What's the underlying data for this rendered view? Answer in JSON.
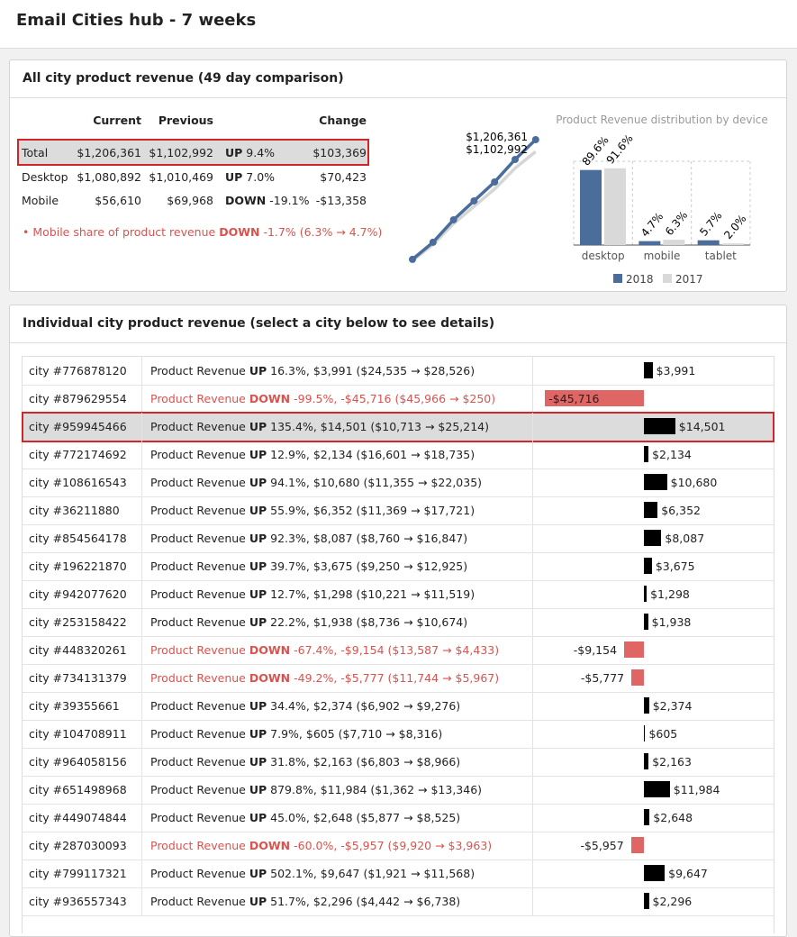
{
  "header": {
    "title": "Email Cities hub - 7 weeks"
  },
  "summary": {
    "title": "All city product revenue (49 day comparison)",
    "columns": [
      "Current",
      "Previous",
      "Change"
    ],
    "rows": [
      {
        "label": "Total",
        "current": "$1,206,361",
        "previous": "$1,102,992",
        "direction": "UP",
        "percent": "9.4%",
        "change": "$103,369"
      },
      {
        "label": "Desktop",
        "current": "$1,080,892",
        "previous": "$1,010,469",
        "direction": "UP",
        "percent": "7.0%",
        "change": "$70,423"
      },
      {
        "label": "Mobile",
        "current": "$56,610",
        "previous": "$69,968",
        "direction": "DOWN",
        "percent": "-19.1%",
        "change": "-$13,358"
      }
    ],
    "selected_row": 0,
    "note": {
      "text": "Mobile share of product revenue",
      "direction": "DOWN",
      "detail": "-1.7% (6.3% → 4.7%)"
    }
  },
  "sparkline": {
    "labels": [
      "$1,206,361",
      "$1,102,992"
    ],
    "current": {
      "color": "#4a6d9b",
      "values": [
        172000,
        319700,
        514100,
        677400,
        840700,
        1035100,
        1206361
      ]
    },
    "previous": {
      "color": "#d6d6d6",
      "values": [
        160000,
        300000,
        480000,
        630000,
        780000,
        960000,
        1102992
      ]
    }
  },
  "device_chart": {
    "type": "bar",
    "title": "Product Revenue distribution by device",
    "categories": [
      "desktop",
      "mobile",
      "tablet"
    ],
    "series": [
      {
        "name": "2018",
        "color": "#4a6d9b",
        "values": [
          89.6,
          4.7,
          5.7
        ],
        "value_labels": [
          "89.6%",
          "4.7%",
          "5.7%"
        ]
      },
      {
        "name": "2017",
        "color": "#d9d9d9",
        "values": [
          91.6,
          6.3,
          2.0
        ],
        "value_labels": [
          "91.6%",
          "6.3%",
          "2.0%"
        ]
      }
    ],
    "ylim": [
      0,
      100
    ]
  },
  "cities": {
    "title": "Individual city product revenue (select a city below to see details)",
    "metric": "Product Revenue",
    "selected_row": 2,
    "rows": [
      {
        "city": "city #776878120",
        "direction": "UP",
        "detail": "16.3%, $3,991 ($24,535 → $28,526)",
        "change": 3991,
        "change_label": "$3,991"
      },
      {
        "city": "city #879629554",
        "direction": "DOWN",
        "detail": "-99.5%, -$45,716 ($45,966 → $250)",
        "change": -45716,
        "change_label": "-$45,716"
      },
      {
        "city": "city #959945466",
        "direction": "UP",
        "detail": "135.4%, $14,501 ($10,713 → $25,214)",
        "change": 14501,
        "change_label": "$14,501"
      },
      {
        "city": "city #772174692",
        "direction": "UP",
        "detail": "12.9%, $2,134 ($16,601 → $18,735)",
        "change": 2134,
        "change_label": "$2,134"
      },
      {
        "city": "city #108616543",
        "direction": "UP",
        "detail": "94.1%, $10,680 ($11,355 → $22,035)",
        "change": 10680,
        "change_label": "$10,680"
      },
      {
        "city": "city #36211880",
        "direction": "UP",
        "detail": "55.9%, $6,352 ($11,369 → $17,721)",
        "change": 6352,
        "change_label": "$6,352"
      },
      {
        "city": "city #854564178",
        "direction": "UP",
        "detail": "92.3%, $8,087 ($8,760 → $16,847)",
        "change": 8087,
        "change_label": "$8,087"
      },
      {
        "city": "city #196221870",
        "direction": "UP",
        "detail": "39.7%, $3,675 ($9,250 → $12,925)",
        "change": 3675,
        "change_label": "$3,675"
      },
      {
        "city": "city #942077620",
        "direction": "UP",
        "detail": "12.7%, $1,298 ($10,221 → $11,519)",
        "change": 1298,
        "change_label": "$1,298"
      },
      {
        "city": "city #253158422",
        "direction": "UP",
        "detail": "22.2%, $1,938 ($8,736 → $10,674)",
        "change": 1938,
        "change_label": "$1,938"
      },
      {
        "city": "city #448320261",
        "direction": "DOWN",
        "detail": "-67.4%, -$9,154 ($13,587 → $4,433)",
        "change": -9154,
        "change_label": "-$9,154"
      },
      {
        "city": "city #734131379",
        "direction": "DOWN",
        "detail": "-49.2%, -$5,777 ($11,744 → $5,967)",
        "change": -5777,
        "change_label": "-$5,777"
      },
      {
        "city": "city #39355661",
        "direction": "UP",
        "detail": "34.4%, $2,374 ($6,902 → $9,276)",
        "change": 2374,
        "change_label": "$2,374"
      },
      {
        "city": "city #104708911",
        "direction": "UP",
        "detail": "7.9%, $605 ($7,710 → $8,316)",
        "change": 605,
        "change_label": "$605"
      },
      {
        "city": "city #964058156",
        "direction": "UP",
        "detail": "31.8%, $2,163 ($6,803 → $8,966)",
        "change": 2163,
        "change_label": "$2,163"
      },
      {
        "city": "city #651498968",
        "direction": "UP",
        "detail": "879.8%, $11,984 ($1,362 → $13,346)",
        "change": 11984,
        "change_label": "$11,984"
      },
      {
        "city": "city #449074844",
        "direction": "UP",
        "detail": "45.0%, $2,648 ($5,877 → $8,525)",
        "change": 2648,
        "change_label": "$2,648"
      },
      {
        "city": "city #287030093",
        "direction": "DOWN",
        "detail": "-60.0%, -$5,957 ($9,920 → $3,963)",
        "change": -5957,
        "change_label": "-$5,957"
      },
      {
        "city": "city #799117321",
        "direction": "UP",
        "detail": "502.1%, $9,647 ($1,921 → $11,568)",
        "change": 9647,
        "change_label": "$9,647"
      },
      {
        "city": "city #936557343",
        "direction": "UP",
        "detail": "51.7%, $2,296 ($4,442 → $6,738)",
        "change": 2296,
        "change_label": "$2,296"
      }
    ]
  }
}
